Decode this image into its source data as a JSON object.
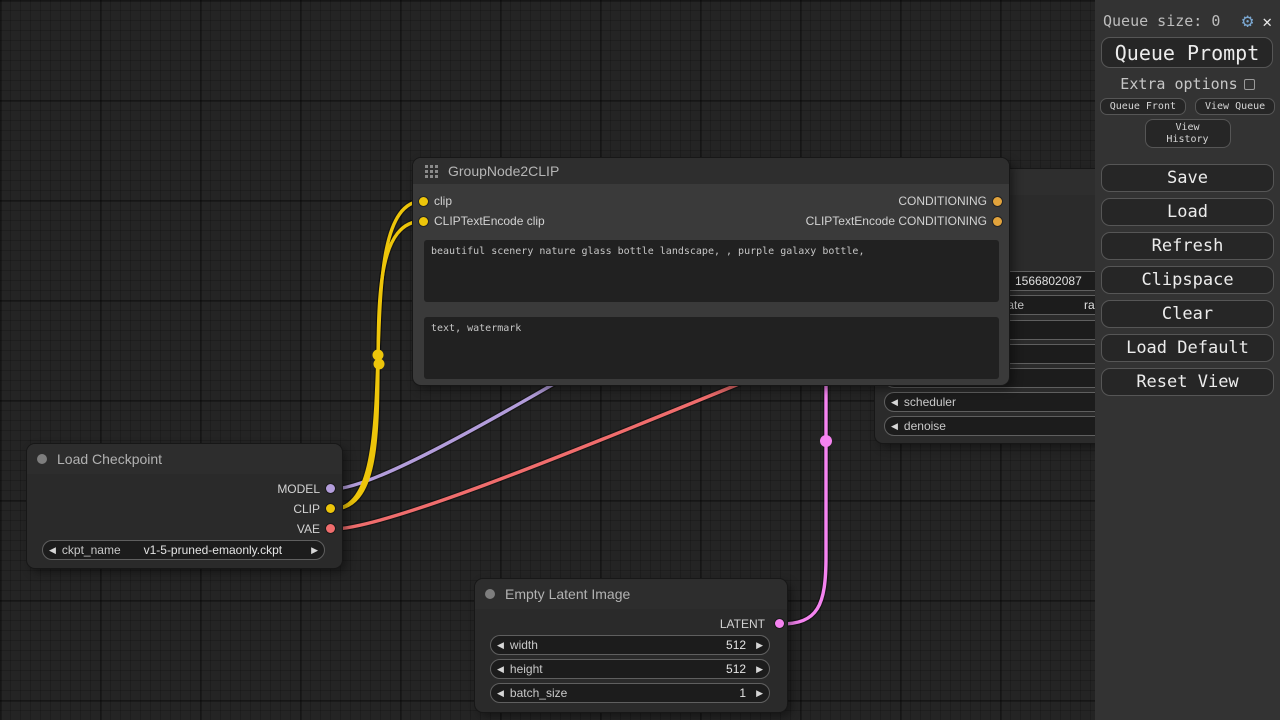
{
  "sidebar": {
    "queue_size_label": "Queue size: 0",
    "queue_prompt_label": "Queue Prompt",
    "extra_options_label": "Extra options",
    "queue_front_label": "Queue Front",
    "view_queue_label": "View Queue",
    "view_history_label": "View History",
    "buttons": [
      "Save",
      "Load",
      "Refresh",
      "Clipspace",
      "Clear",
      "Load Default",
      "Reset View"
    ]
  },
  "icons": {
    "gear": "⚙",
    "close": "✕",
    "arrow_left": "◀",
    "arrow_right": "▶"
  },
  "nodes": {
    "group": {
      "title": "GroupNode2CLIP",
      "inputs": [
        "clip",
        "CLIPTextEncode clip"
      ],
      "outputs": [
        "CONDITIONING",
        "CLIPTextEncode CONDITIONING"
      ],
      "positive_prompt": "beautiful scenery nature glass bottle landscape, , purple galaxy bottle,",
      "negative_prompt": "text, watermark"
    },
    "checkpoint": {
      "title": "Load Checkpoint",
      "outputs": [
        "MODEL",
        "CLIP",
        "VAE"
      ],
      "widget": {
        "label": "ckpt_name",
        "value": "v1-5-pruned-emaonly.ckpt"
      }
    },
    "latent": {
      "title": "Empty Latent Image",
      "output": "LATENT",
      "widgets": [
        {
          "label": "width",
          "value": "512"
        },
        {
          "label": "height",
          "value": "512"
        },
        {
          "label": "batch_size",
          "value": "1"
        }
      ]
    },
    "ksampler": {
      "seed_value": "1566802087",
      "control_label": "control_after_generate",
      "control_value": "randomize",
      "scheduler_label": "scheduler",
      "denoise_label": "denoise"
    }
  },
  "colors": {
    "model": "#B39DDB",
    "clip": "#EDC50A",
    "vae": "#F06D6D",
    "latent": "#F583F0",
    "conditioning": "#E2A33C"
  }
}
